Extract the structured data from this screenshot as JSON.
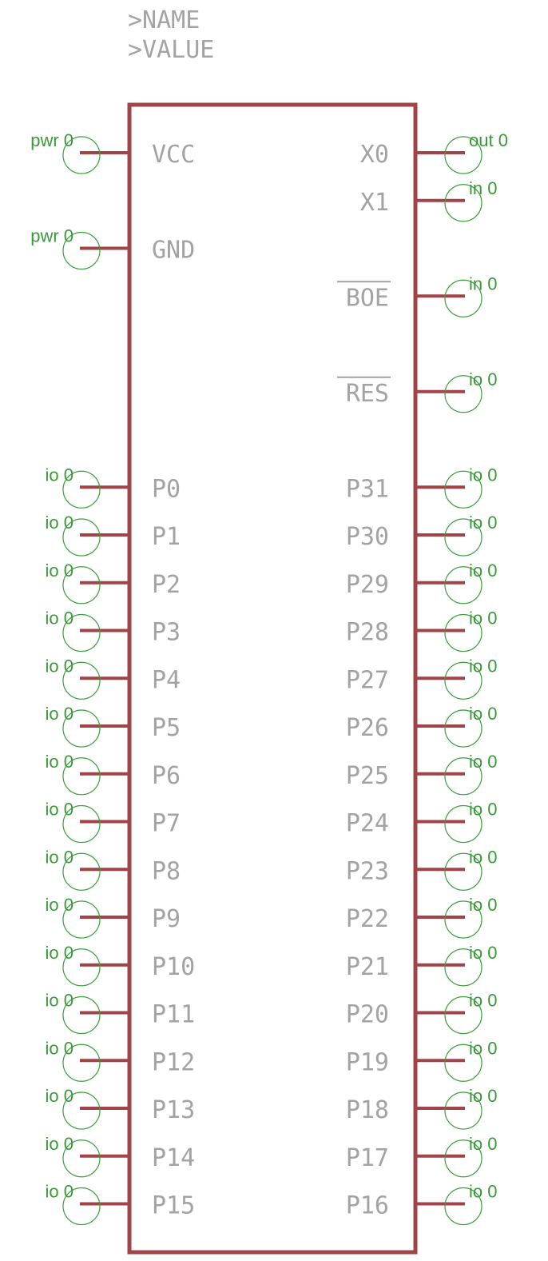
{
  "symbol": {
    "name_placeholder": ">NAME",
    "value_placeholder": ">VALUE"
  },
  "colors": {
    "body": "#a04448",
    "pin_line": "#a04448",
    "pin_circle": "#3aa03a",
    "pin_type": "#3a9a3a",
    "pin_name": "#a3a3a3"
  },
  "left_pins": [
    {
      "name": "VCC",
      "type": "pwr 0",
      "row": 0
    },
    {
      "name": "GND",
      "type": "pwr 0",
      "row": 2
    },
    {
      "name": "P0",
      "type": "io 0",
      "row": 7
    },
    {
      "name": "P1",
      "type": "io 0",
      "row": 8
    },
    {
      "name": "P2",
      "type": "io 0",
      "row": 9
    },
    {
      "name": "P3",
      "type": "io 0",
      "row": 10
    },
    {
      "name": "P4",
      "type": "io 0",
      "row": 11
    },
    {
      "name": "P5",
      "type": "io 0",
      "row": 12
    },
    {
      "name": "P6",
      "type": "io 0",
      "row": 13
    },
    {
      "name": "P7",
      "type": "io 0",
      "row": 14
    },
    {
      "name": "P8",
      "type": "io 0",
      "row": 15
    },
    {
      "name": "P9",
      "type": "io 0",
      "row": 16
    },
    {
      "name": "P10",
      "type": "io 0",
      "row": 17
    },
    {
      "name": "P11",
      "type": "io 0",
      "row": 18
    },
    {
      "name": "P12",
      "type": "io 0",
      "row": 19
    },
    {
      "name": "P13",
      "type": "io 0",
      "row": 20
    },
    {
      "name": "P14",
      "type": "io 0",
      "row": 21
    },
    {
      "name": "P15",
      "type": "io 0",
      "row": 22
    }
  ],
  "right_pins": [
    {
      "name": "X0",
      "type": "out 0",
      "row": 0,
      "overbar": false
    },
    {
      "name": "X1",
      "type": "in 0",
      "row": 1,
      "overbar": false
    },
    {
      "name": "BOE",
      "type": "in 0",
      "row": 3,
      "overbar": true
    },
    {
      "name": "RES",
      "type": "io 0",
      "row": 5,
      "overbar": true
    },
    {
      "name": "P31",
      "type": "io 0",
      "row": 7,
      "overbar": false
    },
    {
      "name": "P30",
      "type": "io 0",
      "row": 8,
      "overbar": false
    },
    {
      "name": "P29",
      "type": "io 0",
      "row": 9,
      "overbar": false
    },
    {
      "name": "P28",
      "type": "io 0",
      "row": 10,
      "overbar": false
    },
    {
      "name": "P27",
      "type": "io 0",
      "row": 11,
      "overbar": false
    },
    {
      "name": "P26",
      "type": "io 0",
      "row": 12,
      "overbar": false
    },
    {
      "name": "P25",
      "type": "io 0",
      "row": 13,
      "overbar": false
    },
    {
      "name": "P24",
      "type": "io 0",
      "row": 14,
      "overbar": false
    },
    {
      "name": "P23",
      "type": "io 0",
      "row": 15,
      "overbar": false
    },
    {
      "name": "P22",
      "type": "io 0",
      "row": 16,
      "overbar": false
    },
    {
      "name": "P21",
      "type": "io 0",
      "row": 17,
      "overbar": false
    },
    {
      "name": "P20",
      "type": "io 0",
      "row": 18,
      "overbar": false
    },
    {
      "name": "P19",
      "type": "io 0",
      "row": 19,
      "overbar": false
    },
    {
      "name": "P18",
      "type": "io 0",
      "row": 20,
      "overbar": false
    },
    {
      "name": "P17",
      "type": "io 0",
      "row": 21,
      "overbar": false
    },
    {
      "name": "P16",
      "type": "io 0",
      "row": 22,
      "overbar": false
    }
  ]
}
